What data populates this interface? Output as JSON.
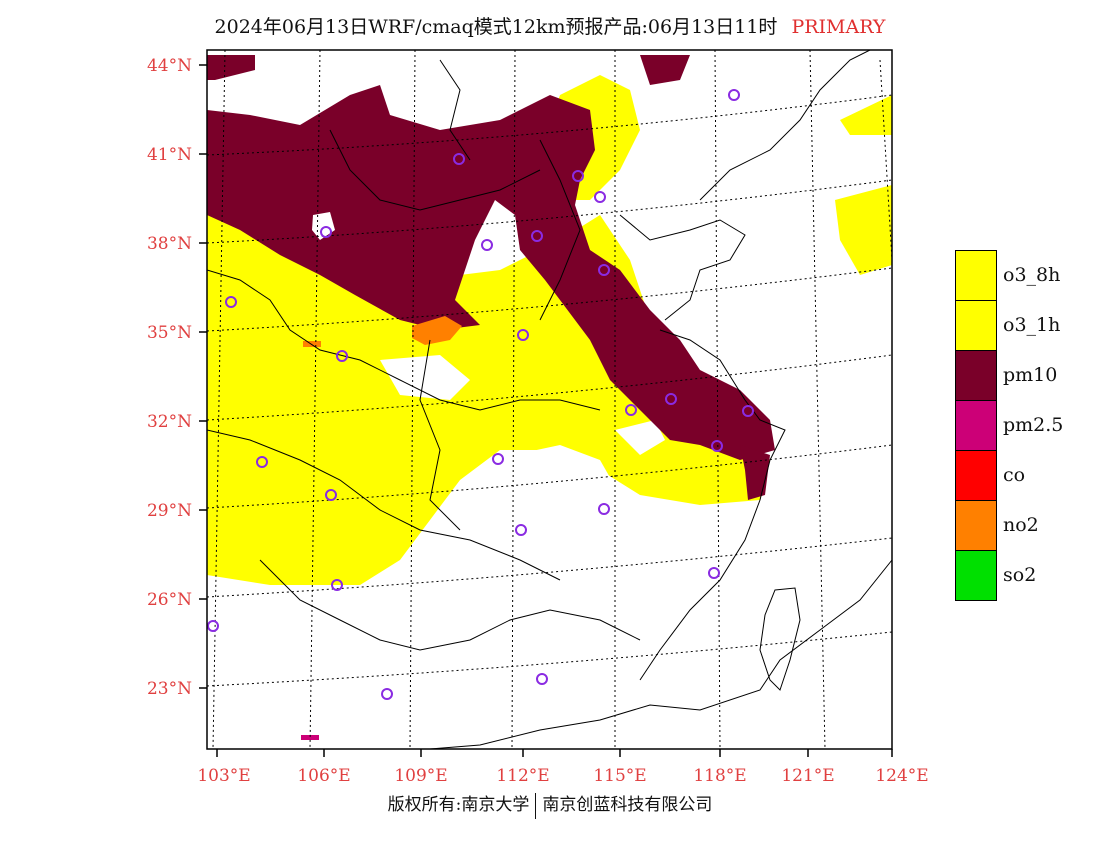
{
  "header": {
    "title": "2024年06月13日WRF/cmaq模式12km预报产品:06月13日11时",
    "tag": "PRIMARY"
  },
  "map": {
    "lat_ticks": [
      "44°N",
      "41°N",
      "38°N",
      "35°N",
      "32°N",
      "29°N",
      "26°N",
      "23°N"
    ],
    "lon_ticks": [
      "103°E",
      "106°E",
      "109°E",
      "112°E",
      "115°E",
      "118°E",
      "121°E",
      "124°E"
    ]
  },
  "legend": {
    "items": [
      {
        "label": "o3_8h",
        "color": "#ffff00"
      },
      {
        "label": "o3_1h",
        "color": "#ffff00"
      },
      {
        "label": "pm10",
        "color": "#7a0029"
      },
      {
        "label": "pm2.5",
        "color": "#cc0077"
      },
      {
        "label": "co",
        "color": "#ff0000"
      },
      {
        "label": "no2",
        "color": "#ff8000"
      },
      {
        "label": "so2",
        "color": "#00e000"
      }
    ]
  },
  "footer": {
    "left": "版权所有:南京大学",
    "right": "南京创蓝科技有限公司"
  }
}
